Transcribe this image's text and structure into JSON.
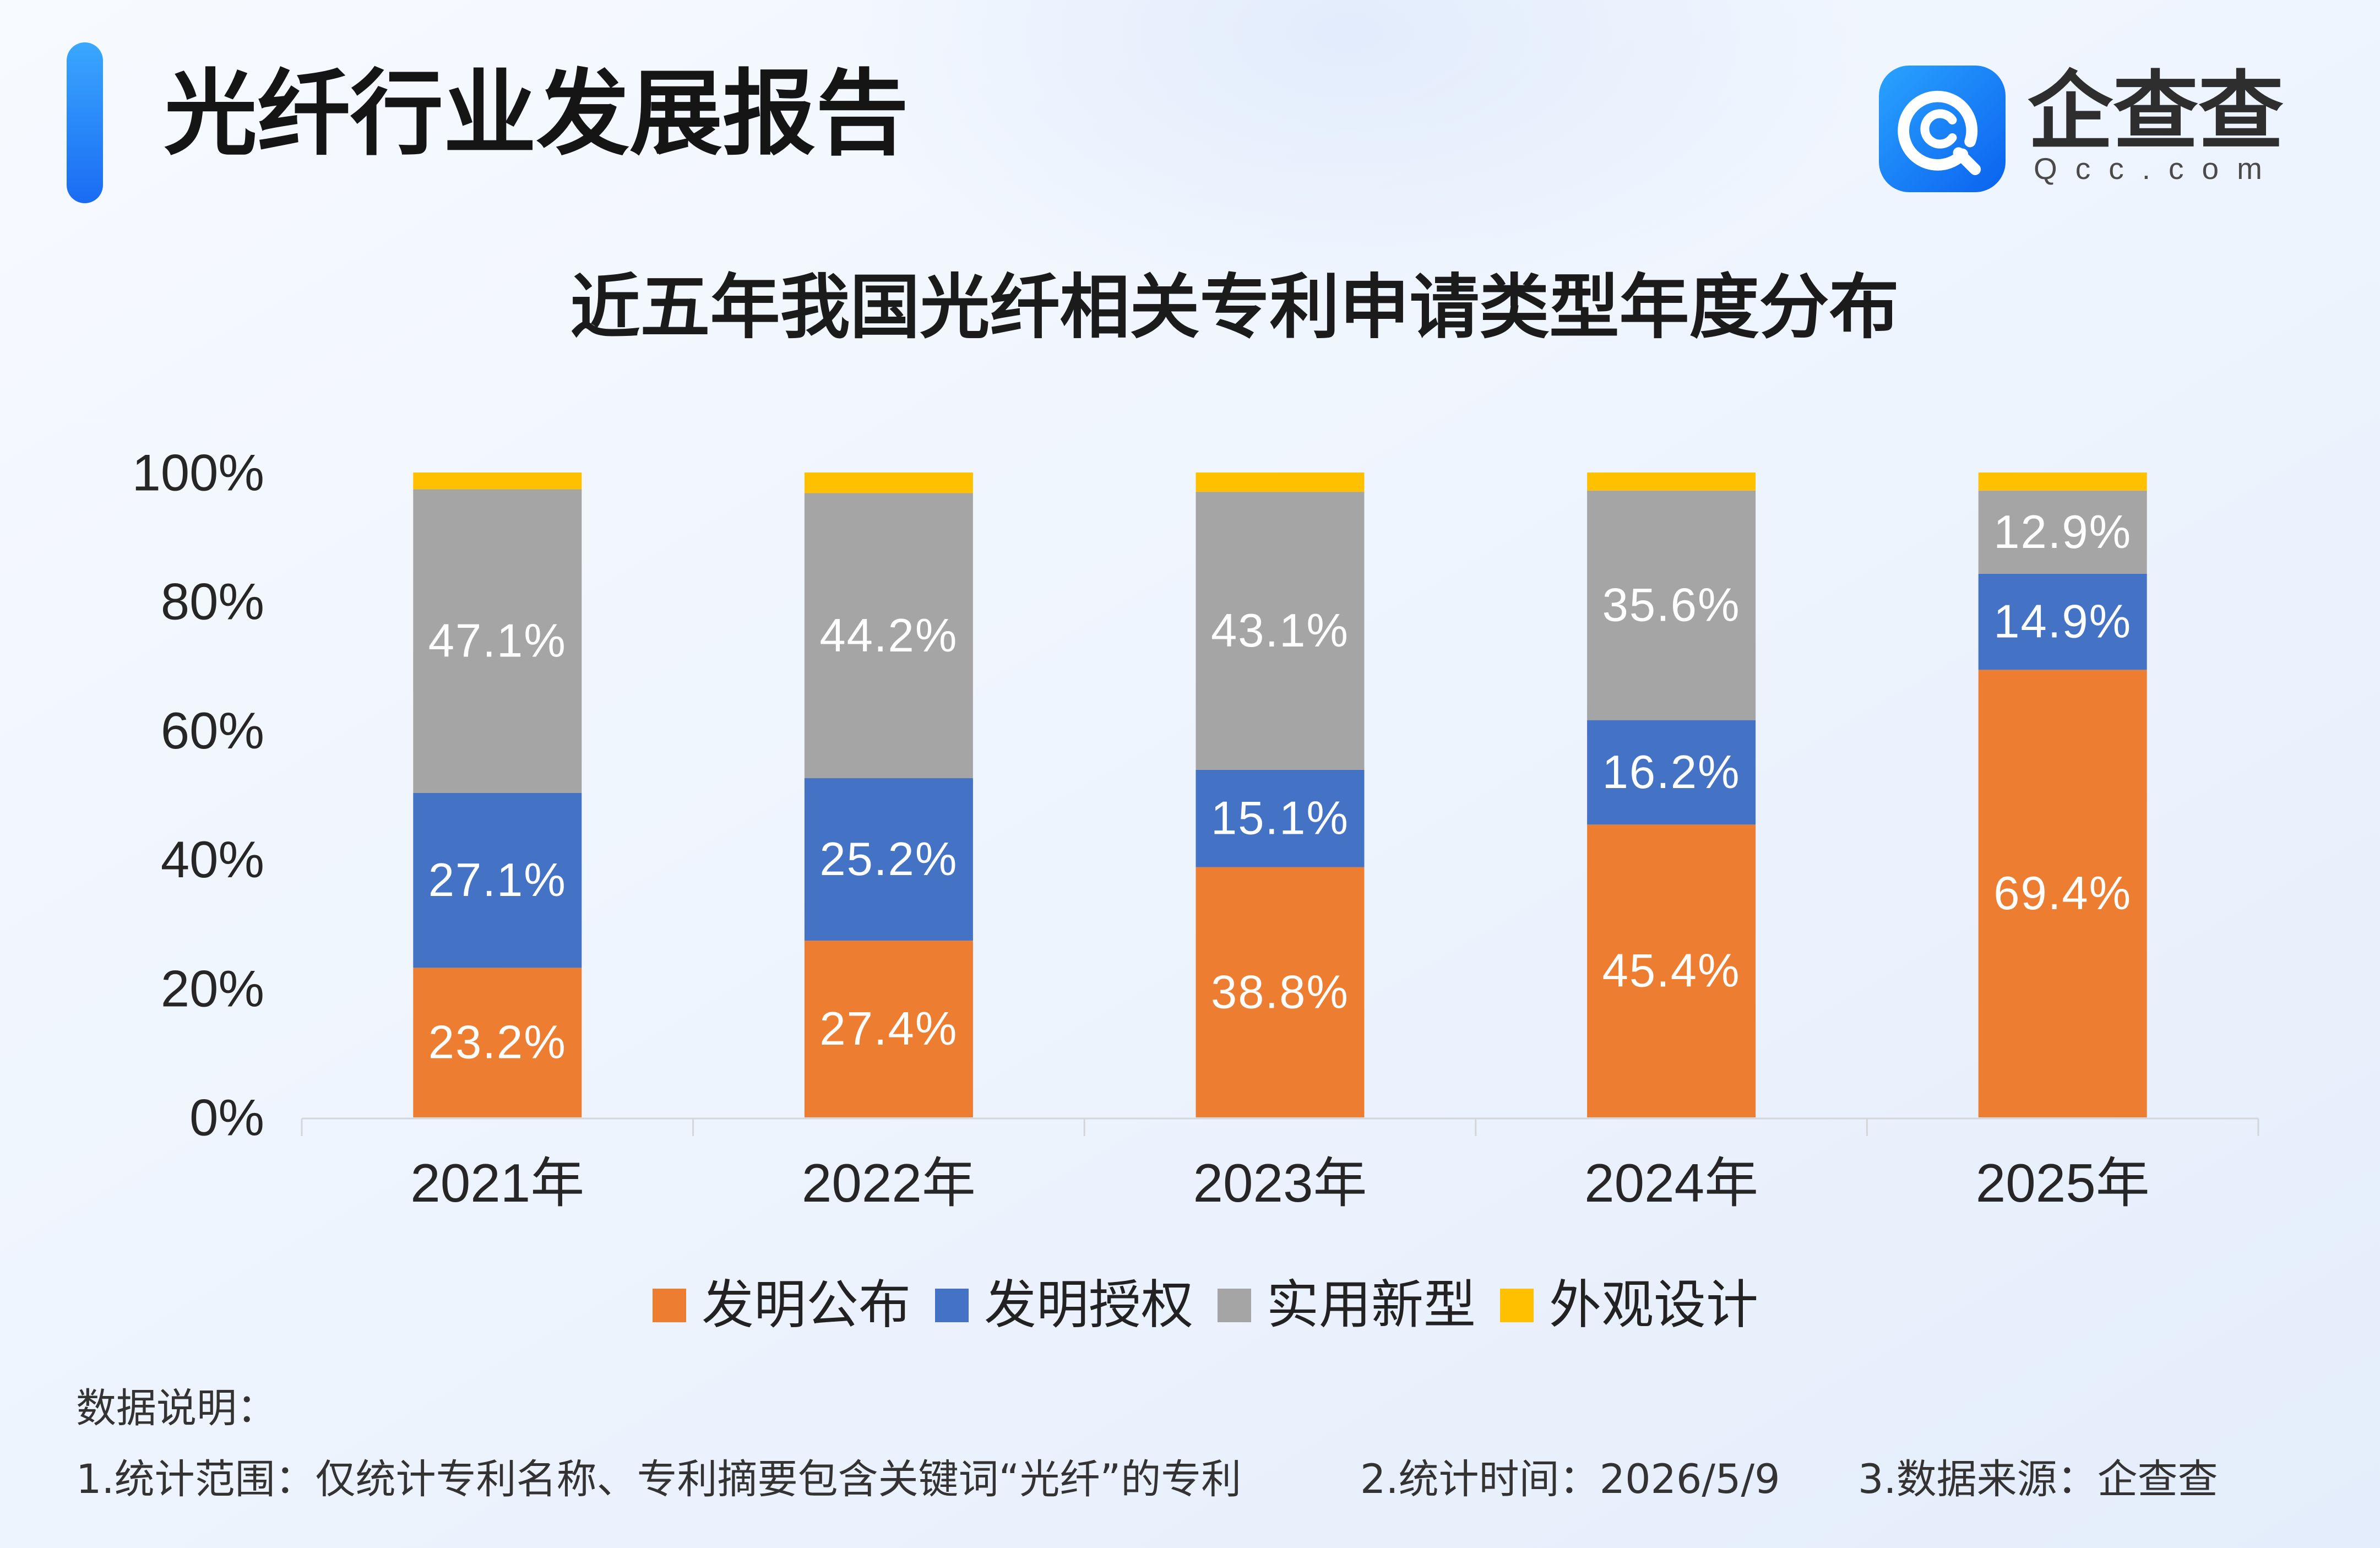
{
  "header": {
    "title": "光纤行业发展报告"
  },
  "logo": {
    "icon": "qcc-logo-icon",
    "name": "企查查",
    "domain": "Qcc.com"
  },
  "chart_data": {
    "type": "bar",
    "stacked": true,
    "title": "近五年我国光纤相关专利申请类型年度分布",
    "xlabel": "",
    "ylabel": "",
    "categories": [
      "2021年",
      "2022年",
      "2023年",
      "2024年",
      "2025年"
    ],
    "series": [
      {
        "name": "发明公布",
        "color": "#ED7D31",
        "values": [
          23.2,
          27.4,
          38.8,
          45.4,
          69.4
        ],
        "data_labels": true
      },
      {
        "name": "发明授权",
        "color": "#4472C4",
        "values": [
          27.1,
          25.2,
          15.1,
          16.2,
          14.9
        ],
        "data_labels": true
      },
      {
        "name": "实用新型",
        "color": "#A5A5A5",
        "values": [
          47.1,
          44.2,
          43.1,
          35.6,
          12.9
        ],
        "data_labels": true
      },
      {
        "name": "外观设计",
        "color": "#FFC000",
        "values": [
          2.6,
          3.2,
          3.0,
          2.8,
          2.8
        ],
        "data_labels": false
      }
    ],
    "value_suffix": "%",
    "ylim": [
      0,
      100
    ],
    "yticks": [
      "0%",
      "20%",
      "40%",
      "60%",
      "80%",
      "100%"
    ],
    "grid": false,
    "legend": "bottom"
  },
  "notes": {
    "heading": "数据说明：",
    "items": [
      "1.统计范围：仅统计专利名称、专利摘要包含关键词“光纤”的专利",
      "2.统计时间：2026/5/9",
      "3.数据来源：企查查"
    ]
  }
}
